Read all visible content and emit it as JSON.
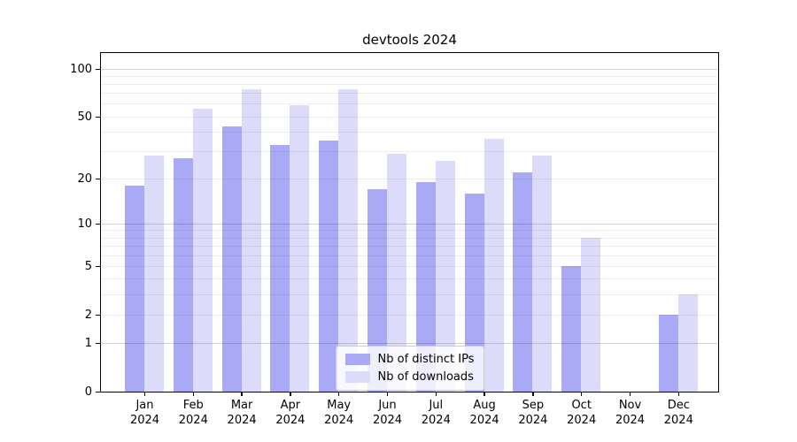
{
  "chart_data": {
    "type": "bar",
    "title": "devtools 2024",
    "xlabel": "",
    "ylabel": "",
    "yscale": "log1p",
    "ylim": [
      0,
      126
    ],
    "grid": "on",
    "months": [
      "Jan",
      "Feb",
      "Mar",
      "Apr",
      "May",
      "Jun",
      "Jul",
      "Aug",
      "Sep",
      "Oct",
      "Nov",
      "Dec"
    ],
    "year": "2024",
    "series": [
      {
        "name": "Nb of distinct IPs",
        "color": "#a9a9f6",
        "values": [
          18,
          27,
          43,
          33,
          35,
          17,
          19,
          16,
          22,
          5,
          0,
          2
        ]
      },
      {
        "name": "Nb of downloads",
        "color": "#dcdcfa",
        "values": [
          28,
          56,
          74,
          59,
          74,
          29,
          26,
          36,
          28,
          8,
          0,
          3
        ]
      }
    ],
    "y_ticks": [
      100,
      50,
      20,
      10,
      5,
      2,
      1,
      0
    ],
    "major_gridlines": [
      100,
      10,
      1
    ],
    "minor_gridlines": [
      90,
      80,
      70,
      60,
      50,
      40,
      30,
      20,
      9,
      8,
      7,
      6,
      5,
      4,
      3,
      2
    ],
    "legend": {
      "position": "lower center"
    },
    "colors": {
      "spine": "#000000",
      "major_grid": "rgba(0,0,0,0.17)",
      "minor_grid": "rgba(0,0,0,0.07)"
    }
  }
}
